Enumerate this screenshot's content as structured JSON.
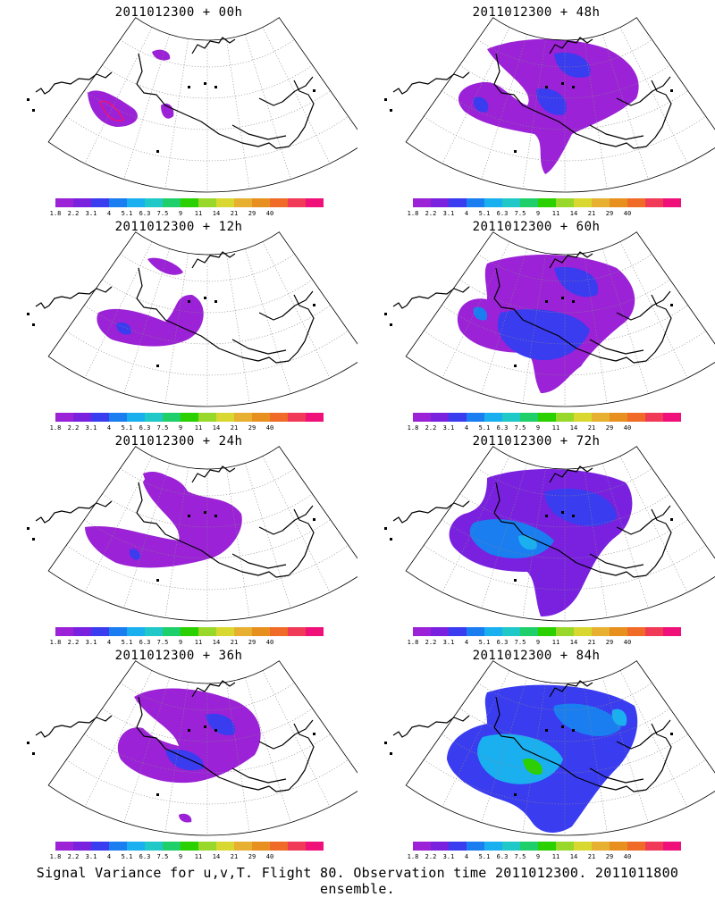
{
  "caption": "Signal Variance for u,v,T. Flight 80. Observation time 2011012300. 2011011800 ensemble.",
  "colorbar": {
    "colors": [
      "#9b22d6",
      "#7a21e0",
      "#3a3cf0",
      "#1a7ef0",
      "#1ab0f0",
      "#20c8c8",
      "#1fcf6a",
      "#2ad000",
      "#98d82a",
      "#d8d830",
      "#e8b030",
      "#e8901f",
      "#f06a28",
      "#f03a58",
      "#f0107a"
    ],
    "labels": [
      "1.8",
      "2.2",
      "3.1",
      "4",
      "5.1",
      "6.3",
      "7.5",
      "9",
      "11",
      "14",
      "21",
      "29",
      "40"
    ]
  },
  "panels": [
    {
      "title": "2011012300 + 00h"
    },
    {
      "title": "2011012300 + 48h"
    },
    {
      "title": "2011012300 + 12h"
    },
    {
      "title": "2011012300 + 60h"
    },
    {
      "title": "2011012300 + 24h"
    },
    {
      "title": "2011012300 + 72h"
    },
    {
      "title": "2011012300 + 36h"
    },
    {
      "title": "2011012300 + 84h"
    }
  ]
}
